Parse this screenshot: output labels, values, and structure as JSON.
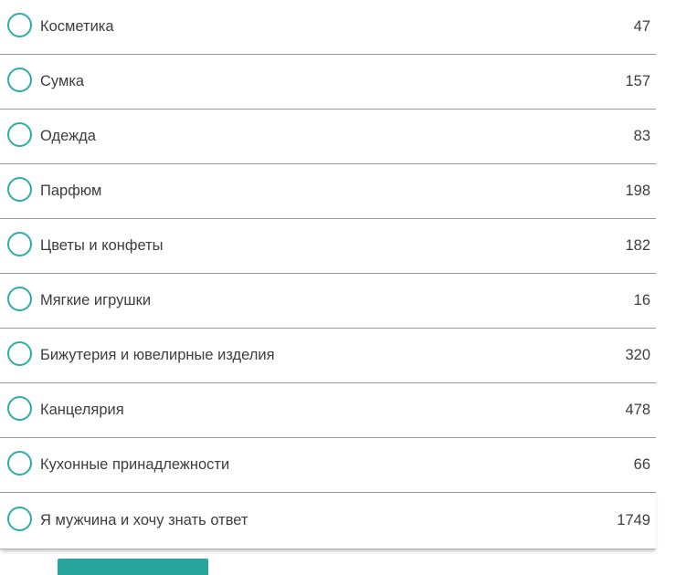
{
  "poll": {
    "options": [
      {
        "label": "Косметика",
        "votes": "47"
      },
      {
        "label": "Сумка",
        "votes": "157"
      },
      {
        "label": "Одежда",
        "votes": "83"
      },
      {
        "label": "Парфюм",
        "votes": "198"
      },
      {
        "label": "Цветы и конфеты",
        "votes": "182"
      },
      {
        "label": "Мягкие игрушки",
        "votes": "16"
      },
      {
        "label": "Бижутерия и ювелирные изделия",
        "votes": "320"
      },
      {
        "label": "Канцелярия",
        "votes": "478"
      },
      {
        "label": "Кухонные принадлежности",
        "votes": "66"
      },
      {
        "label": "Я мужчина и хочу знать ответ",
        "votes": "1749"
      }
    ]
  },
  "colors": {
    "accent": "#2eada5",
    "divider": "#979797",
    "text": "#3d3d3d",
    "vote_bar": "#28a69e"
  }
}
